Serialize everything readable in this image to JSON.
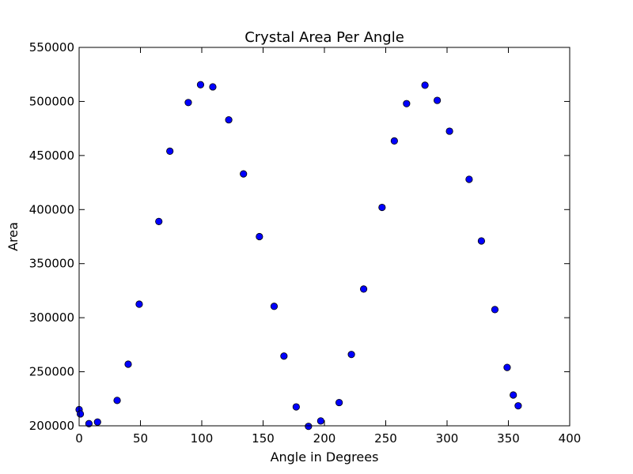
{
  "chart_data": {
    "type": "scatter",
    "title": "Crystal Area Per Angle",
    "xlabel": "Angle in Degrees",
    "ylabel": "Area",
    "xlim": [
      0,
      400
    ],
    "ylim": [
      200000,
      550000
    ],
    "xticks": [
      0,
      50,
      100,
      150,
      200,
      250,
      300,
      350,
      400
    ],
    "yticks": [
      200000,
      250000,
      300000,
      350000,
      400000,
      450000,
      500000,
      550000
    ],
    "xtick_labels": [
      "0",
      "50",
      "100",
      "150",
      "200",
      "250",
      "300",
      "350",
      "400"
    ],
    "ytick_labels": [
      "200000",
      "250000",
      "300000",
      "350000",
      "400000",
      "450000",
      "500000",
      "550000"
    ],
    "grid": false,
    "marker_color": "#0000ff",
    "marker_edge_color": "#000000",
    "series": [
      {
        "x": [
          0,
          1,
          8,
          15,
          31,
          40,
          49,
          65,
          74,
          89,
          99,
          109,
          122,
          134,
          147,
          159,
          167,
          177,
          187,
          197,
          212,
          222,
          232,
          247,
          257,
          267,
          282,
          292,
          302,
          318,
          328,
          339,
          349,
          354,
          358
        ],
        "y": [
          215000,
          211000,
          202000,
          203500,
          223500,
          257000,
          312500,
          389000,
          454000,
          499000,
          515500,
          513500,
          483000,
          433000,
          375000,
          310500,
          264500,
          217500,
          199500,
          204500,
          221500,
          266000,
          326500,
          402000,
          463500,
          498000,
          515000,
          501000,
          472500,
          428000,
          371000,
          307500,
          254000,
          228500,
          218500
        ]
      }
    ]
  }
}
